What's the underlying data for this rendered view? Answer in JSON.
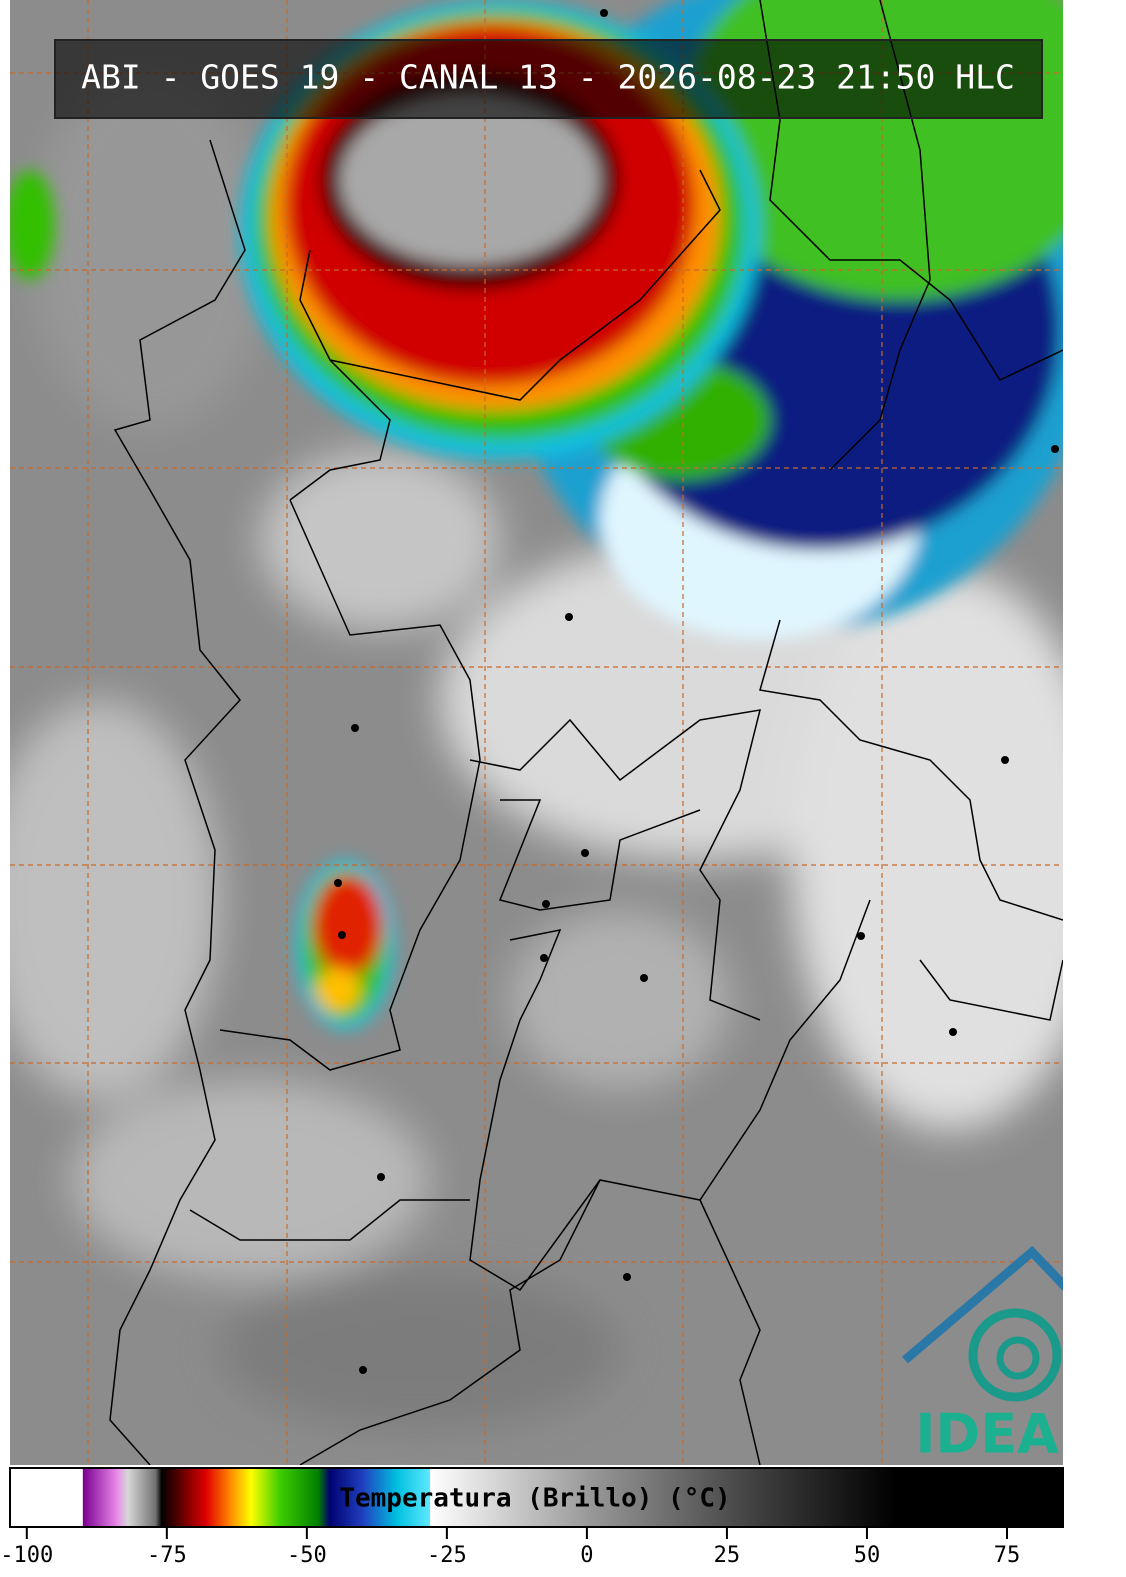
{
  "title": "ABI - GOES 19 - CANAL 13 - 2026-08-23 21:50 HLC",
  "logo": "IDEAM",
  "colorbar": {
    "label": "Temperatura (Brillo) (°C)",
    "xlim": [
      -103,
      85
    ],
    "xticks": [
      -100,
      -75,
      -50,
      -25,
      0,
      25,
      50,
      75
    ],
    "stops": [
      {
        "value": -103,
        "color": "#ffffff"
      },
      {
        "value": -90,
        "color": "#ffffff"
      },
      {
        "value": -90,
        "color": "#7a0090"
      },
      {
        "value": -84,
        "color": "#e888e8"
      },
      {
        "value": -82,
        "color": "#d8d8d8"
      },
      {
        "value": -77,
        "color": "#707070"
      },
      {
        "value": -76,
        "color": "#000000"
      },
      {
        "value": -72,
        "color": "#700000"
      },
      {
        "value": -68,
        "color": "#e00000"
      },
      {
        "value": -64,
        "color": "#ff8000"
      },
      {
        "value": -60,
        "color": "#ffff00"
      },
      {
        "value": -55,
        "color": "#40d000"
      },
      {
        "value": -48,
        "color": "#008000"
      },
      {
        "value": -46,
        "color": "#000070"
      },
      {
        "value": -40,
        "color": "#2040c0"
      },
      {
        "value": -34,
        "color": "#00c0e0"
      },
      {
        "value": -28,
        "color": "#60e8ff"
      },
      {
        "value": -28,
        "color": "#ffffff"
      },
      {
        "value": 0,
        "color": "#9a9a9a"
      },
      {
        "value": 30,
        "color": "#404040"
      },
      {
        "value": 55,
        "color": "#000000"
      },
      {
        "value": 85,
        "color": "#000000"
      }
    ]
  }
}
